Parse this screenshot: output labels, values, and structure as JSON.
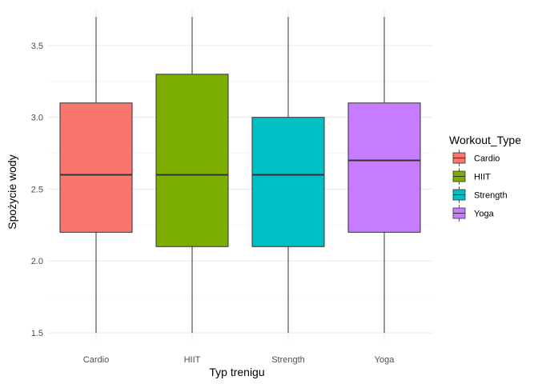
{
  "chart_data": {
    "type": "boxplot",
    "title": "",
    "xlabel": "Typ trenigu",
    "ylabel": "Spożycie wody",
    "categories": [
      "Cardio",
      "HIIT",
      "Strength",
      "Yoga"
    ],
    "boxes": [
      {
        "category": "Cardio",
        "min": 1.5,
        "q1": 2.2,
        "median": 2.6,
        "q3": 3.1,
        "max": 3.7
      },
      {
        "category": "HIIT",
        "min": 1.5,
        "q1": 2.1,
        "median": 2.6,
        "q3": 3.3,
        "max": 3.7
      },
      {
        "category": "Strength",
        "min": 1.5,
        "q1": 2.1,
        "median": 2.6,
        "q3": 3.0,
        "max": 3.7
      },
      {
        "category": "Yoga",
        "min": 1.5,
        "q1": 2.2,
        "median": 2.7,
        "q3": 3.1,
        "max": 3.7
      }
    ],
    "colors": [
      "#F8766D",
      "#7CAE00",
      "#00BFC4",
      "#C77CFF"
    ],
    "ylim": [
      1.45,
      3.75
    ],
    "yticks": [
      1.5,
      2.0,
      2.5,
      3.0,
      3.5
    ],
    "ytick_labels": [
      "1.5",
      "2.0",
      "2.5",
      "3.0",
      "3.5"
    ],
    "grid": true,
    "legend": {
      "title": "Workout_Type",
      "position": "right",
      "entries": [
        "Cardio",
        "HIIT",
        "Strength",
        "Yoga"
      ]
    }
  }
}
